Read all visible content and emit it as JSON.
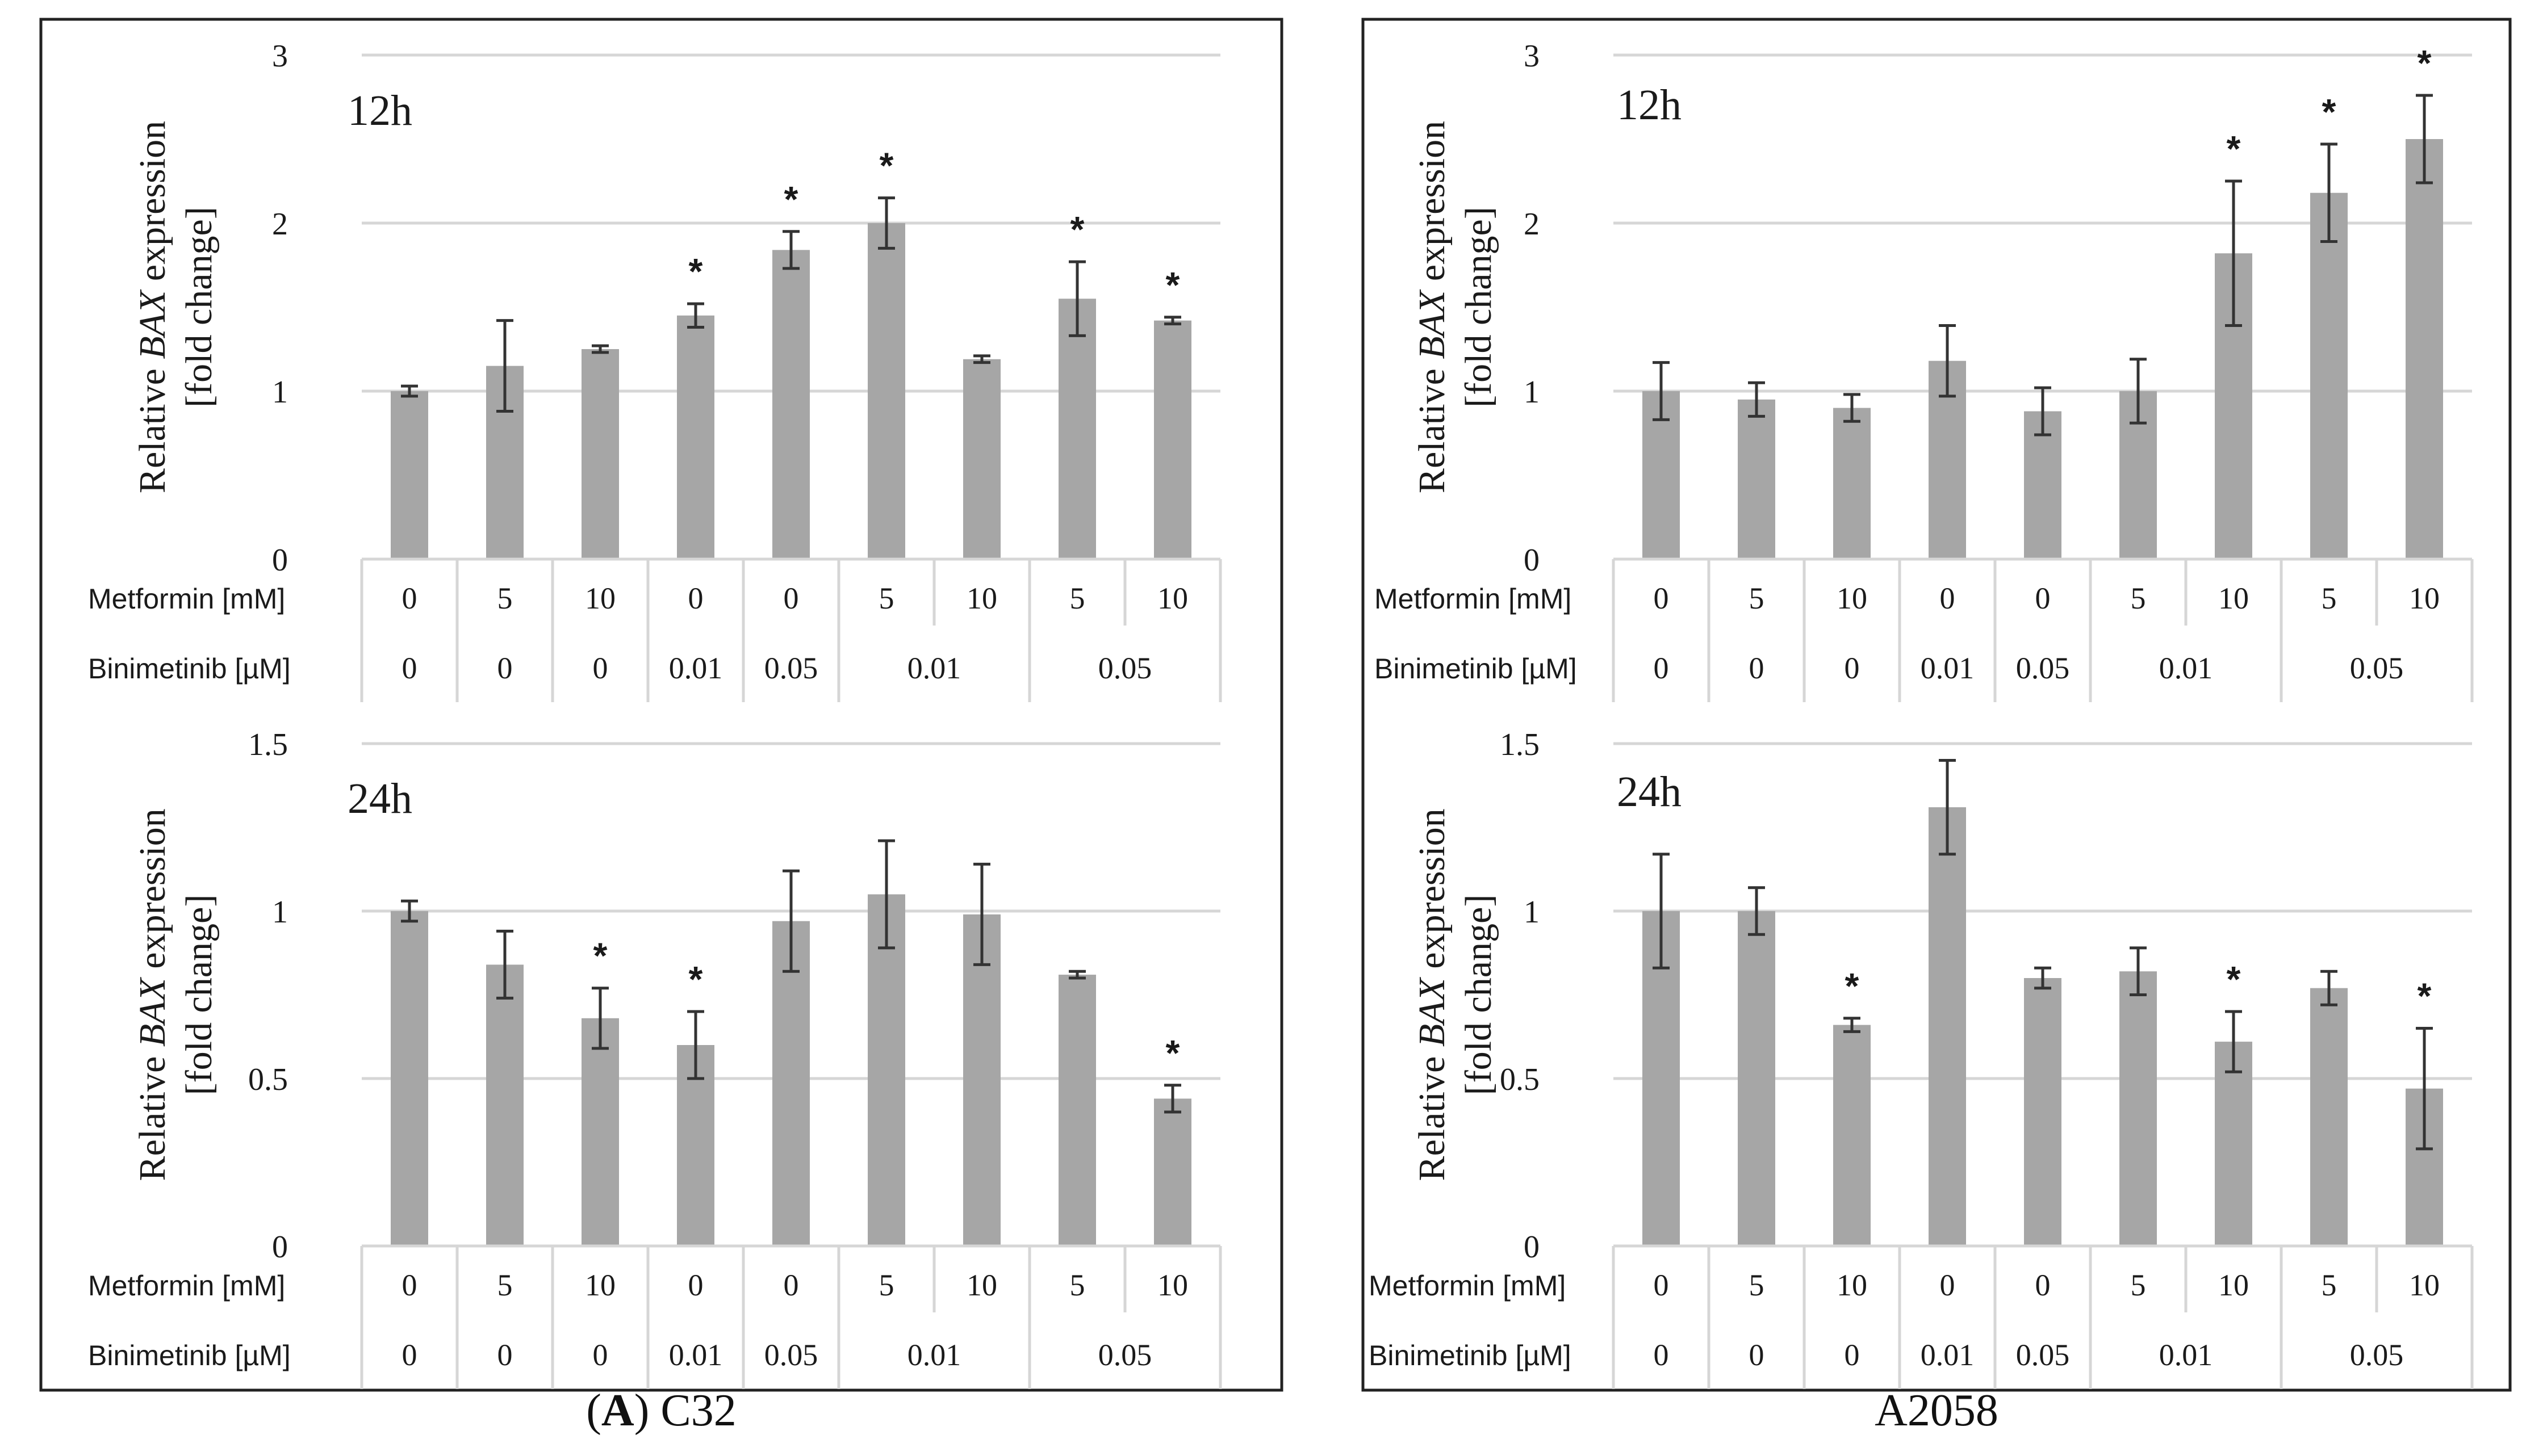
{
  "figure": {
    "caption_left_letter": "A",
    "caption_left_cell": "C32",
    "caption_right": "A2058"
  },
  "chart_data": [
    {
      "type": "bar",
      "cell_line": "C32",
      "timepoint": "12h",
      "ylabel_prefix": "Relative ",
      "ylabel_gene": "BAX",
      "ylabel_suffix": " expression",
      "ylabel_line2": "[fold change]",
      "ylim": [
        0,
        3
      ],
      "yticks": [
        "0",
        "1",
        "2",
        "3"
      ],
      "ytick_values": [
        0,
        1,
        2,
        3
      ],
      "row1_label": "Metformin [mM]",
      "row2_label": "Binimetinib [µM]",
      "metformin": [
        "0",
        "5",
        "10",
        "0",
        "0",
        "5",
        "10",
        "5",
        "10"
      ],
      "binimetinib_groups": [
        {
          "label": "0",
          "span": 1
        },
        {
          "label": "0",
          "span": 1
        },
        {
          "label": "0",
          "span": 1
        },
        {
          "label": "0.01",
          "span": 1
        },
        {
          "label": "0.05",
          "span": 1
        },
        {
          "label": "0.01",
          "span": 2
        },
        {
          "label": "0.05",
          "span": 2
        }
      ],
      "values": [
        1.0,
        1.15,
        1.25,
        1.45,
        1.84,
        2.0,
        1.19,
        1.55,
        1.42
      ],
      "errors": [
        0.03,
        0.27,
        0.02,
        0.07,
        0.11,
        0.15,
        0.02,
        0.22,
        0.02
      ],
      "significant": [
        false,
        false,
        false,
        true,
        true,
        true,
        false,
        true,
        true
      ],
      "sig_marker": "*"
    },
    {
      "type": "bar",
      "cell_line": "C32",
      "timepoint": "24h",
      "ylabel_prefix": "Relative ",
      "ylabel_gene": "BAX",
      "ylabel_suffix": " expression",
      "ylabel_line2": "[fold change]",
      "ylim": [
        0,
        1.5
      ],
      "yticks": [
        "0",
        "0.5",
        "1",
        "1.5"
      ],
      "ytick_values": [
        0,
        0.5,
        1,
        1.5
      ],
      "row1_label": "Metformin [mM]",
      "row2_label": "Binimetinib [µM]",
      "metformin": [
        "0",
        "5",
        "10",
        "0",
        "0",
        "5",
        "10",
        "5",
        "10"
      ],
      "binimetinib_groups": [
        {
          "label": "0",
          "span": 1
        },
        {
          "label": "0",
          "span": 1
        },
        {
          "label": "0",
          "span": 1
        },
        {
          "label": "0.01",
          "span": 1
        },
        {
          "label": "0.05",
          "span": 1
        },
        {
          "label": "0.01",
          "span": 2
        },
        {
          "label": "0.05",
          "span": 2
        }
      ],
      "values": [
        1.0,
        0.84,
        0.68,
        0.6,
        0.97,
        1.05,
        0.99,
        0.81,
        0.44
      ],
      "errors": [
        0.03,
        0.1,
        0.09,
        0.1,
        0.15,
        0.16,
        0.15,
        0.01,
        0.04
      ],
      "significant": [
        false,
        false,
        true,
        true,
        false,
        false,
        false,
        false,
        true
      ],
      "sig_marker": "*"
    },
    {
      "type": "bar",
      "cell_line": "A2058",
      "timepoint": "12h",
      "ylabel_prefix": "Relative ",
      "ylabel_gene": "BAX",
      "ylabel_suffix": " expression",
      "ylabel_line2": "[fold change]",
      "ylim": [
        0,
        3
      ],
      "yticks": [
        "0",
        "1",
        "2",
        "3"
      ],
      "ytick_values": [
        0,
        1,
        2,
        3
      ],
      "row1_label": "Metformin [mM]",
      "row2_label": "Binimetinib [µM]",
      "metformin": [
        "0",
        "5",
        "10",
        "0",
        "0",
        "5",
        "10",
        "5",
        "10"
      ],
      "binimetinib_groups": [
        {
          "label": "0",
          "span": 1
        },
        {
          "label": "0",
          "span": 1
        },
        {
          "label": "0",
          "span": 1
        },
        {
          "label": "0.01",
          "span": 1
        },
        {
          "label": "0.05",
          "span": 1
        },
        {
          "label": "0.01",
          "span": 2
        },
        {
          "label": "0.05",
          "span": 2
        }
      ],
      "values": [
        1.0,
        0.95,
        0.9,
        1.18,
        0.88,
        1.0,
        1.82,
        2.18,
        2.5
      ],
      "errors": [
        0.17,
        0.1,
        0.08,
        0.21,
        0.14,
        0.19,
        0.43,
        0.29,
        0.26
      ],
      "significant": [
        false,
        false,
        false,
        false,
        false,
        false,
        true,
        true,
        true
      ],
      "sig_marker": "*"
    },
    {
      "type": "bar",
      "cell_line": "A2058",
      "timepoint": "24h",
      "ylabel_prefix": "Relative ",
      "ylabel_gene": "BAX",
      "ylabel_suffix": " expression",
      "ylabel_line2": "[fold change]",
      "ylim": [
        0,
        1.5
      ],
      "yticks": [
        "0",
        "0.5",
        "1",
        "1.5"
      ],
      "ytick_values": [
        0,
        0.5,
        1,
        1.5
      ],
      "row1_label": "Metformin [mM]",
      "row2_label": "Binimetinib [µM]",
      "metformin": [
        "0",
        "5",
        "10",
        "0",
        "0",
        "5",
        "10",
        "5",
        "10"
      ],
      "binimetinib_groups": [
        {
          "label": "0",
          "span": 1
        },
        {
          "label": "0",
          "span": 1
        },
        {
          "label": "0",
          "span": 1
        },
        {
          "label": "0.01",
          "span": 1
        },
        {
          "label": "0.05",
          "span": 1
        },
        {
          "label": "0.01",
          "span": 2
        },
        {
          "label": "0.05",
          "span": 2
        }
      ],
      "values": [
        1.0,
        1.0,
        0.66,
        1.31,
        0.8,
        0.82,
        0.61,
        0.77,
        0.47
      ],
      "errors": [
        0.17,
        0.07,
        0.02,
        0.14,
        0.03,
        0.07,
        0.09,
        0.05,
        0.18
      ],
      "significant": [
        false,
        false,
        true,
        false,
        false,
        false,
        true,
        false,
        true
      ],
      "sig_marker": "*"
    }
  ]
}
